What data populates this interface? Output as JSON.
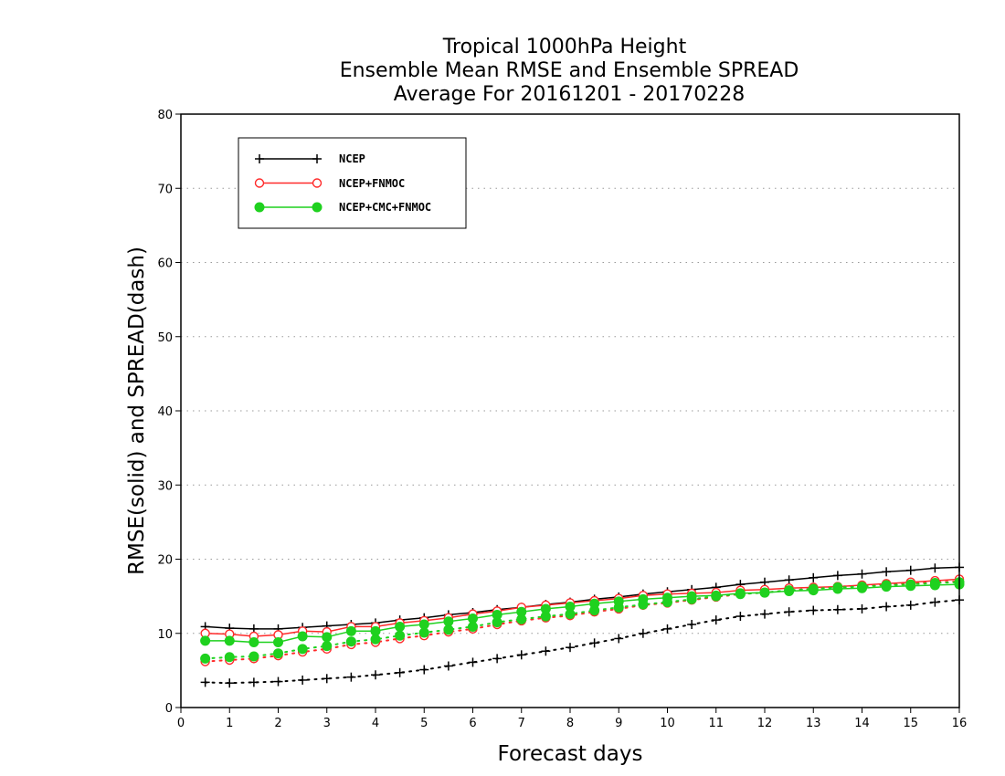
{
  "chart_data": {
    "type": "line",
    "title": [
      "Tropical 1000hPa Height",
      "Ensemble Mean RMSE and Ensemble SPREAD",
      "Average For 20161201 - 20170228"
    ],
    "xlabel": "Forecast days",
    "ylabel": "RMSE(solid) and SPREAD(dash)",
    "xlim": [
      0,
      16
    ],
    "ylim": [
      0,
      80
    ],
    "xticks": [
      0,
      1,
      2,
      3,
      4,
      5,
      6,
      7,
      8,
      9,
      10,
      11,
      12,
      13,
      14,
      15,
      16
    ],
    "yticks": [
      0,
      10,
      20,
      30,
      40,
      50,
      60,
      70,
      80
    ],
    "grid": "horizontal dotted",
    "legend_position": "top-left",
    "x": [
      0.5,
      1,
      1.5,
      2,
      2.5,
      3,
      3.5,
      4,
      4.5,
      5,
      5.5,
      6,
      6.5,
      7,
      7.5,
      8,
      8.5,
      9,
      9.5,
      10,
      10.5,
      11,
      11.5,
      12,
      12.5,
      13,
      13.5,
      14,
      14.5,
      15,
      15.5,
      16
    ],
    "series": [
      {
        "name": "NCEP",
        "color": "#000000",
        "marker": "plus",
        "rmse": [
          10.9,
          10.7,
          10.6,
          10.6,
          10.8,
          11.0,
          11.2,
          11.4,
          11.8,
          12.1,
          12.5,
          12.8,
          13.2,
          13.5,
          13.9,
          14.2,
          14.6,
          14.9,
          15.3,
          15.6,
          15.9,
          16.2,
          16.6,
          16.9,
          17.2,
          17.5,
          17.8,
          18.0,
          18.3,
          18.5,
          18.8,
          18.9
        ],
        "spread": [
          3.4,
          3.3,
          3.4,
          3.5,
          3.7,
          3.9,
          4.1,
          4.4,
          4.7,
          5.1,
          5.6,
          6.1,
          6.6,
          7.1,
          7.6,
          8.1,
          8.7,
          9.3,
          10.0,
          10.6,
          11.2,
          11.8,
          12.3,
          12.6,
          12.9,
          13.1,
          13.2,
          13.3,
          13.6,
          13.8,
          14.2,
          14.5
        ]
      },
      {
        "name": "NCEP+FNMOC",
        "color": "#ff2a2a",
        "marker": "open-circle",
        "rmse": [
          10.0,
          9.9,
          9.6,
          9.8,
          10.3,
          10.2,
          10.9,
          10.9,
          11.4,
          11.7,
          12.1,
          12.6,
          13.0,
          13.5,
          13.8,
          14.1,
          14.4,
          14.7,
          15.1,
          15.3,
          15.4,
          15.5,
          15.8,
          15.9,
          16.1,
          16.2,
          16.3,
          16.5,
          16.7,
          16.9,
          17.1,
          17.3
        ],
        "spread": [
          6.2,
          6.4,
          6.6,
          7.0,
          7.5,
          7.9,
          8.5,
          8.8,
          9.3,
          9.7,
          10.2,
          10.6,
          11.2,
          11.7,
          12.1,
          12.4,
          12.9,
          13.3,
          13.8,
          14.1,
          14.5,
          14.9,
          15.3,
          15.5,
          15.8,
          16.0,
          16.3,
          16.4,
          16.6,
          16.7,
          16.9,
          17.0
        ]
      },
      {
        "name": "NCEP+CMC+FNMOC",
        "color": "#1fd11f",
        "marker": "filled-circle",
        "rmse": [
          9.0,
          9.0,
          8.8,
          8.8,
          9.6,
          9.5,
          10.3,
          10.3,
          10.9,
          11.2,
          11.6,
          12.0,
          12.5,
          12.9,
          13.3,
          13.6,
          14.0,
          14.3,
          14.6,
          14.8,
          15.0,
          15.1,
          15.4,
          15.5,
          15.7,
          15.8,
          16.0,
          16.1,
          16.3,
          16.4,
          16.5,
          16.6
        ],
        "spread": [
          6.6,
          6.8,
          6.9,
          7.3,
          7.9,
          8.3,
          8.9,
          9.2,
          9.7,
          10.1,
          10.5,
          10.9,
          11.5,
          11.9,
          12.3,
          12.6,
          13.1,
          13.5,
          13.9,
          14.2,
          14.6,
          15.0,
          15.3,
          15.5,
          15.8,
          16.0,
          16.2,
          16.3,
          16.5,
          16.6,
          16.8,
          16.9
        ]
      }
    ]
  }
}
